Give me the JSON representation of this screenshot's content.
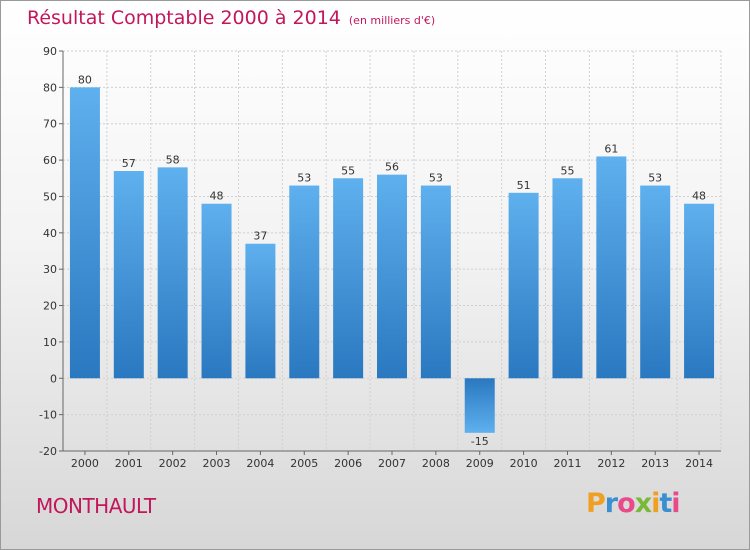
{
  "title": "Résultat Comptable 2000 à 2014",
  "unit_note": "(en milliers d'€)",
  "commune": "MONTHAULT",
  "logo": {
    "letters": [
      "P",
      "r",
      "o",
      "x",
      "i",
      "t",
      "i"
    ],
    "colors": [
      "#f0a020",
      "#3a8fd0",
      "#e84a8a",
      "#7ab83a",
      "#f0a020",
      "#3a8fd0",
      "#e84a8a"
    ]
  },
  "chart_data": {
    "type": "bar",
    "title": "Résultat Comptable 2000 à 2014",
    "categories": [
      "2000",
      "2001",
      "2002",
      "2003",
      "2004",
      "2005",
      "2006",
      "2007",
      "2008",
      "2009",
      "2010",
      "2011",
      "2012",
      "2013",
      "2014"
    ],
    "values": [
      80,
      57,
      58,
      48,
      37,
      53,
      55,
      56,
      53,
      -15,
      51,
      55,
      61,
      53,
      48
    ],
    "value_labels": [
      "80",
      "57",
      "58",
      "48",
      "37",
      "53",
      "55",
      "56",
      "53",
      "-15",
      "51",
      "55",
      "61",
      "53",
      "48"
    ],
    "ylim": [
      -20,
      90
    ],
    "yticks": [
      -20,
      -10,
      0,
      10,
      20,
      30,
      40,
      50,
      60,
      70,
      80,
      90
    ],
    "grid": true,
    "bar_color": "#3d8fd8"
  }
}
